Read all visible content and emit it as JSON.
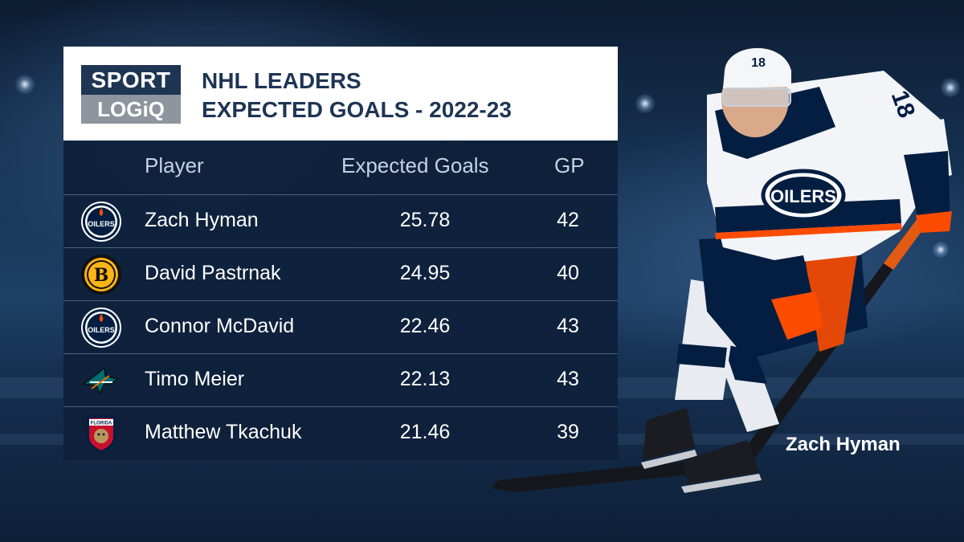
{
  "brand": {
    "line1": "SPORT",
    "line2": "LOGiQ"
  },
  "header": {
    "title_line1": "NHL LEADERS",
    "title_line2": "EXPECTED GOALS - 2022-23"
  },
  "table": {
    "columns": {
      "player": "Player",
      "xg": "Expected Goals",
      "gp": "GP"
    },
    "rows": [
      {
        "team_icon": "oilers-logo-icon",
        "player": "Zach Hyman",
        "xg": "25.78",
        "gp": "42"
      },
      {
        "team_icon": "bruins-logo-icon",
        "player": "David Pastrnak",
        "xg": "24.95",
        "gp": "40"
      },
      {
        "team_icon": "oilers-logo-icon",
        "player": "Connor McDavid",
        "xg": "22.46",
        "gp": "43"
      },
      {
        "team_icon": "sharks-logo-icon",
        "player": "Timo Meier",
        "xg": "22.13",
        "gp": "43"
      },
      {
        "team_icon": "panthers-logo-icon",
        "player": "Matthew Tkachuk",
        "xg": "21.46",
        "gp": "39"
      }
    ]
  },
  "featured_player": {
    "name": "Zach Hyman",
    "jersey_number": "18",
    "team_wordmark": "OILERS"
  },
  "logo_texts": {
    "oilers": "OILERS",
    "panthers": "FLORIDA"
  },
  "colors": {
    "navy": "#1e3554",
    "oilers_blue": "#041e42",
    "oilers_orange": "#fc4c02",
    "bruins_gold": "#fcb514",
    "sharks_teal": "#006d75",
    "panthers_red": "#c8102e"
  }
}
